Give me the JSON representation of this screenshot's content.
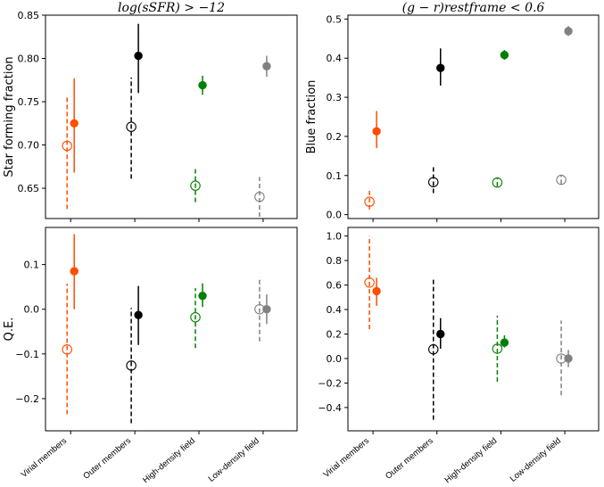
{
  "figure": {
    "categories": [
      "Virial members",
      "Outer members",
      "High-density field",
      "Low-density field"
    ],
    "colors": {
      "Virial members": "#ff4d00",
      "Outer members": "#000000",
      "High-density field": "#008000",
      "Low-density field": "#808080"
    },
    "legend_encoding": {
      "filled": "solid marker, solid error bar",
      "open": "open circle, dashed error bar"
    }
  },
  "chart_data": [
    {
      "id": "top-left",
      "type": "errorbar",
      "title": "log(sSFR) > −12",
      "xlabel": "",
      "ylabel": "Star forming fraction",
      "ylim": [
        0.615,
        0.85
      ],
      "yticks": [
        0.65,
        0.7,
        0.75,
        0.8,
        0.85
      ],
      "yticklabels": [
        "0.65",
        "0.70",
        "0.75",
        "0.80",
        "0.85"
      ],
      "series": [
        {
          "name": "open",
          "style": "open-dashed",
          "values": [
            0.699,
            0.721,
            0.653,
            0.64
          ],
          "lower": [
            0.626,
            0.661,
            0.634,
            0.617
          ],
          "upper": [
            0.758,
            0.778,
            0.673,
            0.663
          ]
        },
        {
          "name": "filled",
          "style": "filled-solid",
          "values": [
            0.725,
            0.803,
            0.769,
            0.791
          ],
          "lower": [
            0.668,
            0.76,
            0.758,
            0.779
          ],
          "upper": [
            0.777,
            0.84,
            0.78,
            0.803
          ]
        }
      ]
    },
    {
      "id": "top-right",
      "type": "errorbar",
      "title": "(g − r)restframe < 0.6",
      "xlabel": "",
      "ylabel": "Blue fraction",
      "ylim": [
        -0.01,
        0.51
      ],
      "yticks": [
        0.0,
        0.1,
        0.2,
        0.3,
        0.4,
        0.5
      ],
      "yticklabels": [
        "0.0",
        "0.1",
        "0.2",
        "0.3",
        "0.4",
        "0.5"
      ],
      "series": [
        {
          "name": "open",
          "style": "open-dashed",
          "values": [
            0.033,
            0.083,
            0.082,
            0.089
          ],
          "lower": [
            0.013,
            0.055,
            0.072,
            0.078
          ],
          "upper": [
            0.068,
            0.127,
            0.095,
            0.102
          ]
        },
        {
          "name": "filled",
          "style": "filled-solid",
          "values": [
            0.213,
            0.375,
            0.408,
            0.469
          ],
          "lower": [
            0.17,
            0.33,
            0.396,
            0.457
          ],
          "upper": [
            0.265,
            0.425,
            0.421,
            0.482
          ]
        }
      ]
    },
    {
      "id": "bottom-left",
      "type": "errorbar",
      "title": "",
      "xlabel": "",
      "ylabel": "Q.E.",
      "ylim": [
        -0.272,
        0.183
      ],
      "yticks": [
        -0.2,
        -0.1,
        0.0,
        0.1
      ],
      "yticklabels": [
        "−0.2",
        "−0.1",
        "0.0",
        "0.1"
      ],
      "series": [
        {
          "name": "open",
          "style": "open-dashed",
          "values": [
            -0.09,
            -0.126,
            -0.018,
            0.0
          ],
          "lower": [
            -0.235,
            -0.255,
            -0.087,
            -0.072
          ],
          "upper": [
            0.057,
            0.003,
            0.047,
            0.072
          ]
        },
        {
          "name": "filled",
          "style": "filled-solid",
          "values": [
            0.085,
            -0.013,
            0.03,
            0.0
          ],
          "lower": [
            0.0,
            -0.08,
            0.005,
            -0.033
          ],
          "upper": [
            0.168,
            0.052,
            0.058,
            0.033
          ]
        }
      ]
    },
    {
      "id": "bottom-right",
      "type": "errorbar",
      "title": "",
      "xlabel": "",
      "ylabel": "",
      "ylim": [
        -0.59,
        1.07
      ],
      "yticks": [
        -0.4,
        -0.2,
        0.0,
        0.2,
        0.4,
        0.6,
        0.8,
        1.0
      ],
      "yticklabels": [
        "−0.4",
        "−0.2",
        "0.0",
        "0.2",
        "0.4",
        "0.6",
        "0.8",
        "1.0"
      ],
      "series": [
        {
          "name": "open",
          "style": "open-dashed",
          "values": [
            0.62,
            0.075,
            0.08,
            0.0
          ],
          "lower": [
            0.24,
            -0.5,
            -0.19,
            -0.3
          ],
          "upper": [
            1.0,
            0.65,
            0.35,
            0.31
          ]
        },
        {
          "name": "filled",
          "style": "filled-solid",
          "values": [
            0.55,
            0.2,
            0.13,
            0.0
          ],
          "lower": [
            0.43,
            0.08,
            0.09,
            -0.07
          ],
          "upper": [
            0.66,
            0.33,
            0.19,
            0.07
          ]
        }
      ]
    }
  ]
}
